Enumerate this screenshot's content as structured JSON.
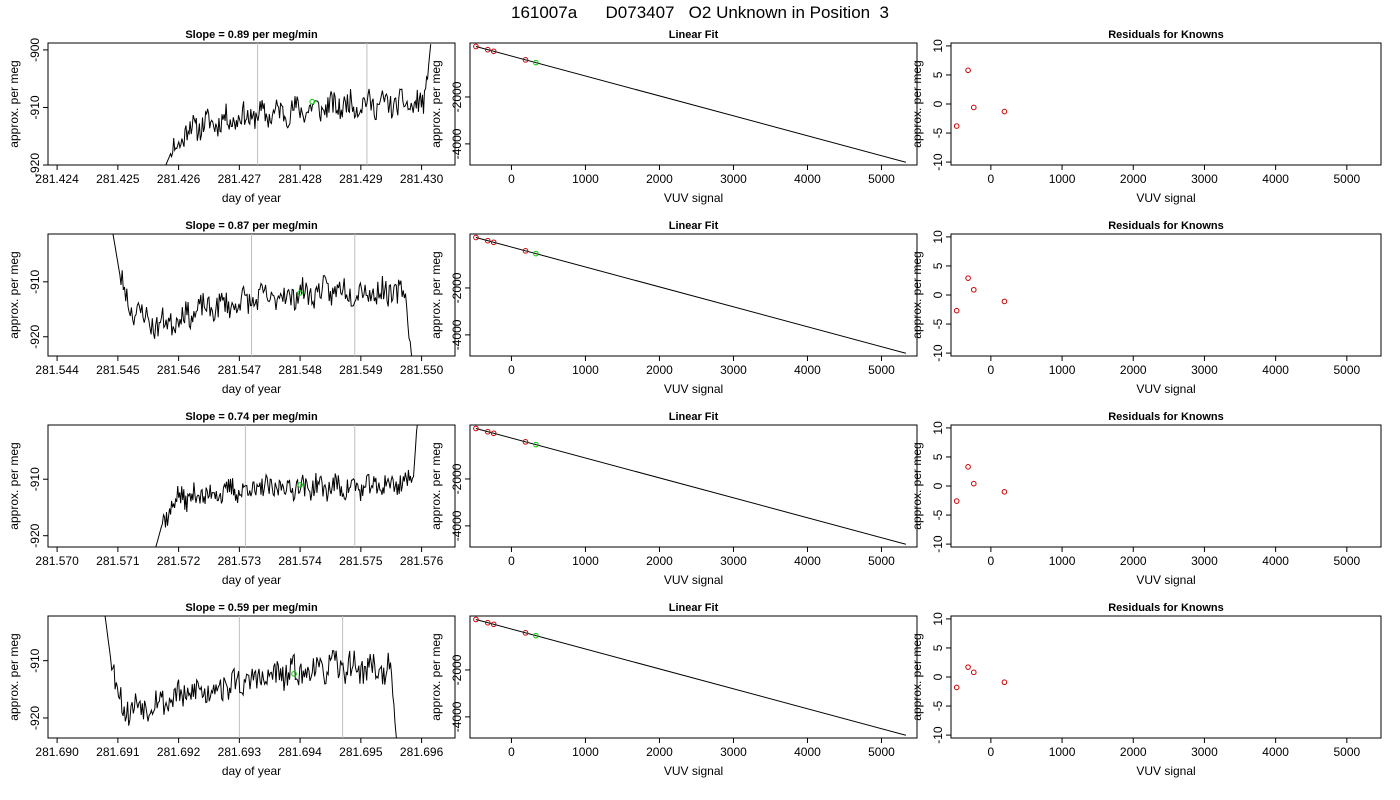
{
  "page_title": "161007a      D073407   O2 Unknown in Position  3",
  "panel_titles": {
    "linear_fit": "Linear Fit",
    "residuals": "Residuals for Knowns"
  },
  "axis_labels": {
    "day_of_year": "day of year",
    "vuv_signal": "VUV signal",
    "per_meg": "approx. per meg"
  },
  "colors": {
    "trace": "#000000",
    "known_points": "#cc0000",
    "unknown_point": "#00cc00",
    "marker_lines": "#bfbfbf"
  },
  "chart_data": [
    {
      "type": "line",
      "panel": "timeseries-row-1",
      "title": "Slope =  0.89  per meg/min",
      "xlabel": "day of year",
      "ylabel": "approx. per meg",
      "xlim": [
        281.42385,
        281.43055
      ],
      "ylim": [
        -920,
        -898.8
      ],
      "xticks": [
        281.424,
        281.425,
        281.426,
        281.427,
        281.428,
        281.429,
        281.43
      ],
      "xtick_labels": [
        "281.424",
        "281.425",
        "281.426",
        "281.427",
        "281.428",
        "281.429",
        "281.430"
      ],
      "yticks": [
        -900,
        -910,
        -920
      ],
      "ytick_labels": [
        "-900",
        "-910",
        "-920"
      ],
      "vlines": [
        281.4273,
        281.4291
      ],
      "unknown_point": {
        "x": 281.4282,
        "y": -909.0
      },
      "trace_profile": {
        "x_start": 281.42575,
        "x_end": 281.43015,
        "start_y": -921.0,
        "mean": -910.8,
        "noise": 1.3,
        "end_y": -899,
        "knots": [
          [
            0.0,
            -919.5
          ],
          [
            0.1,
            -913.5
          ],
          [
            0.25,
            -912.0
          ],
          [
            0.5,
            -910.5
          ],
          [
            0.75,
            -909.3
          ],
          [
            0.95,
            -909.5
          ]
        ],
        "seed": 11
      }
    },
    {
      "type": "line",
      "panel": "linearfit-row-1",
      "title": "Linear Fit",
      "xlabel": "VUV signal",
      "ylabel": "approx. per meg",
      "xlim": [
        -560,
        5480
      ],
      "ylim": [
        -4900,
        300
      ],
      "xticks": [
        0,
        1000,
        2000,
        3000,
        4000,
        5000
      ],
      "xtick_labels": [
        "0",
        "1000",
        "2000",
        "3000",
        "4000",
        "5000"
      ],
      "yticks": [
        -2000,
        -4000
      ],
      "ytick_labels": [
        "-2000",
        "-4000"
      ],
      "fit_line": {
        "x": [
          -480,
          5330
        ],
        "y": [
          152,
          -4784
        ]
      },
      "known_points": {
        "x": [
          -480,
          -320,
          -240,
          190
        ],
        "y": [
          152,
          14,
          -53,
          -418
        ]
      },
      "unknown_point": {
        "x": 330,
        "y": -537
      }
    },
    {
      "type": "scatter",
      "panel": "residuals-row-1",
      "title": "Residuals for Knowns",
      "xlabel": "VUV signal",
      "ylabel": "approx. per meg",
      "xlim": [
        -560,
        5480
      ],
      "ylim": [
        -10.5,
        10.5
      ],
      "xticks": [
        0,
        1000,
        2000,
        3000,
        4000,
        5000
      ],
      "xtick_labels": [
        "0",
        "1000",
        "2000",
        "3000",
        "4000",
        "5000"
      ],
      "yticks": [
        10,
        5,
        0,
        -5,
        -10
      ],
      "ytick_labels": [
        "10",
        "5",
        "0",
        "-5",
        "-10"
      ],
      "points": {
        "x": [
          -480,
          -320,
          -240,
          190
        ],
        "y": [
          -3.8,
          5.8,
          -0.6,
          -1.3
        ]
      }
    },
    {
      "type": "line",
      "panel": "timeseries-row-2",
      "title": "Slope =  0.87  per meg/min",
      "xlabel": "day of year",
      "ylabel": "approx. per meg",
      "xlim": [
        281.54385,
        281.55055
      ],
      "ylim": [
        -923.5,
        -901.3
      ],
      "xticks": [
        281.544,
        281.545,
        281.546,
        281.547,
        281.548,
        281.549,
        281.55
      ],
      "xtick_labels": [
        "281.544",
        "281.545",
        "281.546",
        "281.547",
        "281.548",
        "281.549",
        "281.550"
      ],
      "yticks": [
        -910,
        -920
      ],
      "ytick_labels": [
        "-910",
        "-920"
      ],
      "vlines": [
        281.5472,
        281.5489
      ],
      "unknown_point": {
        "x": 281.548,
        "y": -912.0
      },
      "trace_profile": {
        "x_start": 281.5449,
        "x_end": 281.54985,
        "start_y": -900,
        "mean": -913.5,
        "noise": 1.4,
        "end_y": -925,
        "knots": [
          [
            0.0,
            -905
          ],
          [
            0.06,
            -914.5
          ],
          [
            0.15,
            -918.0
          ],
          [
            0.3,
            -915.0
          ],
          [
            0.5,
            -913.0
          ],
          [
            0.75,
            -911.5
          ],
          [
            0.92,
            -912.0
          ]
        ],
        "seed": 23
      }
    },
    {
      "type": "line",
      "panel": "linearfit-row-2",
      "title": "Linear Fit",
      "xlabel": "VUV signal",
      "ylabel": "approx. per meg",
      "xlim": [
        -560,
        5480
      ],
      "ylim": [
        -4900,
        300
      ],
      "xticks": [
        0,
        1000,
        2000,
        3000,
        4000,
        5000
      ],
      "xtick_labels": [
        "0",
        "1000",
        "2000",
        "3000",
        "4000",
        "5000"
      ],
      "yticks": [
        -2000,
        -4000
      ],
      "ytick_labels": [
        "-2000",
        "-4000"
      ],
      "fit_line": {
        "x": [
          -480,
          5330
        ],
        "y": [
          152,
          -4784
        ]
      },
      "known_points": {
        "x": [
          -480,
          -320,
          -240,
          190
        ],
        "y": [
          152,
          14,
          -53,
          -418
        ]
      },
      "unknown_point": {
        "x": 330,
        "y": -537
      }
    },
    {
      "type": "scatter",
      "panel": "residuals-row-2",
      "title": "Residuals for Knowns",
      "xlabel": "VUV signal",
      "ylabel": "approx. per meg",
      "xlim": [
        -560,
        5480
      ],
      "ylim": [
        -10.5,
        10.5
      ],
      "xticks": [
        0,
        1000,
        2000,
        3000,
        4000,
        5000
      ],
      "xtick_labels": [
        "0",
        "1000",
        "2000",
        "3000",
        "4000",
        "5000"
      ],
      "yticks": [
        10,
        5,
        0,
        -5,
        -10
      ],
      "ytick_labels": [
        "10",
        "5",
        "0",
        "-5",
        "-10"
      ],
      "points": {
        "x": [
          -480,
          -320,
          -240,
          190
        ],
        "y": [
          -2.7,
          2.9,
          0.9,
          -1.1
        ]
      }
    },
    {
      "type": "line",
      "panel": "timeseries-row-3",
      "title": "Slope =  0.74  per meg/min",
      "xlabel": "day of year",
      "ylabel": "approx. per meg",
      "xlim": [
        281.56985,
        281.57655
      ],
      "ylim": [
        -922,
        -900.4
      ],
      "xticks": [
        281.57,
        281.571,
        281.572,
        281.573,
        281.574,
        281.575,
        281.576
      ],
      "xtick_labels": [
        "281.570",
        "281.571",
        "281.572",
        "281.573",
        "281.574",
        "281.575",
        "281.576"
      ],
      "yticks": [
        -910,
        -920
      ],
      "ytick_labels": [
        "-910",
        "-920"
      ],
      "vlines": [
        281.5731,
        281.5749
      ],
      "unknown_point": {
        "x": 281.574,
        "y": -911.0
      },
      "trace_profile": {
        "x_start": 281.5716,
        "x_end": 281.57595,
        "start_y": -923,
        "mean": -911.5,
        "noise": 1.2,
        "end_y": -898,
        "knots": [
          [
            0.0,
            -920.5
          ],
          [
            0.08,
            -913.5
          ],
          [
            0.3,
            -912.0
          ],
          [
            0.55,
            -911.3
          ],
          [
            0.8,
            -911.5
          ],
          [
            0.95,
            -910.5
          ]
        ],
        "seed": 37
      }
    },
    {
      "type": "line",
      "panel": "linearfit-row-3",
      "title": "Linear Fit",
      "xlabel": "VUV signal",
      "ylabel": "approx. per meg",
      "xlim": [
        -560,
        5480
      ],
      "ylim": [
        -4900,
        300
      ],
      "xticks": [
        0,
        1000,
        2000,
        3000,
        4000,
        5000
      ],
      "xtick_labels": [
        "0",
        "1000",
        "2000",
        "3000",
        "4000",
        "5000"
      ],
      "yticks": [
        -2000,
        -4000
      ],
      "ytick_labels": [
        "-2000",
        "-4000"
      ],
      "fit_line": {
        "x": [
          -480,
          5330
        ],
        "y": [
          152,
          -4784
        ]
      },
      "known_points": {
        "x": [
          -480,
          -320,
          -240,
          190
        ],
        "y": [
          152,
          14,
          -53,
          -418
        ]
      },
      "unknown_point": {
        "x": 330,
        "y": -537
      }
    },
    {
      "type": "scatter",
      "panel": "residuals-row-3",
      "title": "Residuals for Knowns",
      "xlabel": "VUV signal",
      "ylabel": "approx. per meg",
      "xlim": [
        -560,
        5480
      ],
      "ylim": [
        -10.5,
        10.5
      ],
      "xticks": [
        0,
        1000,
        2000,
        3000,
        4000,
        5000
      ],
      "xtick_labels": [
        "0",
        "1000",
        "2000",
        "3000",
        "4000",
        "5000"
      ],
      "yticks": [
        10,
        5,
        0,
        -5,
        -10
      ],
      "ytick_labels": [
        "10",
        "5",
        "0",
        "-5",
        "-10"
      ],
      "points": {
        "x": [
          -480,
          -320,
          -240,
          190
        ],
        "y": [
          -2.6,
          3.3,
          0.4,
          -1.0
        ]
      }
    },
    {
      "type": "line",
      "panel": "timeseries-row-4",
      "title": "Slope =  0.59  per meg/min",
      "xlabel": "day of year",
      "ylabel": "approx. per meg",
      "xlim": [
        281.68985,
        281.69655
      ],
      "ylim": [
        -923.5,
        -902.2
      ],
      "xticks": [
        281.69,
        281.691,
        281.692,
        281.693,
        281.694,
        281.695,
        281.696
      ],
      "xtick_labels": [
        "281.690",
        "281.691",
        "281.692",
        "281.693",
        "281.694",
        "281.695",
        "281.696"
      ],
      "yticks": [
        -910,
        -920
      ],
      "ytick_labels": [
        "-910",
        "-920"
      ],
      "vlines": [
        281.693,
        281.6947
      ],
      "unknown_point": {
        "x": 281.6939,
        "y": -912.3
      },
      "trace_profile": {
        "x_start": 281.69075,
        "x_end": 281.6956,
        "start_y": -899,
        "mean": -913.5,
        "noise": 1.5,
        "end_y": -925,
        "knots": [
          [
            0.0,
            -905
          ],
          [
            0.07,
            -918.5
          ],
          [
            0.2,
            -917.0
          ],
          [
            0.4,
            -914.5
          ],
          [
            0.6,
            -912.5
          ],
          [
            0.8,
            -911.0
          ],
          [
            0.95,
            -911.5
          ]
        ],
        "seed": 53
      }
    },
    {
      "type": "line",
      "panel": "linearfit-row-4",
      "title": "Linear Fit",
      "xlabel": "VUV signal",
      "ylabel": "approx. per meg",
      "xlim": [
        -560,
        5480
      ],
      "ylim": [
        -4900,
        300
      ],
      "xticks": [
        0,
        1000,
        2000,
        3000,
        4000,
        5000
      ],
      "xtick_labels": [
        "0",
        "1000",
        "2000",
        "3000",
        "4000",
        "5000"
      ],
      "yticks": [
        -2000,
        -4000
      ],
      "ytick_labels": [
        "-2000",
        "-4000"
      ],
      "fit_line": {
        "x": [
          -480,
          5330
        ],
        "y": [
          152,
          -4784
        ]
      },
      "known_points": {
        "x": [
          -480,
          -320,
          -240,
          190
        ],
        "y": [
          152,
          14,
          -53,
          -418
        ]
      },
      "unknown_point": {
        "x": 330,
        "y": -537
      }
    },
    {
      "type": "scatter",
      "panel": "residuals-row-4",
      "title": "Residuals for Knowns",
      "xlabel": "VUV signal",
      "ylabel": "approx. per meg",
      "xlim": [
        -560,
        5480
      ],
      "ylim": [
        -10.5,
        10.5
      ],
      "xticks": [
        0,
        1000,
        2000,
        3000,
        4000,
        5000
      ],
      "xtick_labels": [
        "0",
        "1000",
        "2000",
        "3000",
        "4000",
        "5000"
      ],
      "yticks": [
        10,
        5,
        0,
        -5,
        -10
      ],
      "ytick_labels": [
        "10",
        "5",
        "0",
        "-5",
        "-10"
      ],
      "points": {
        "x": [
          -480,
          -320,
          -240,
          190
        ],
        "y": [
          -1.8,
          1.7,
          0.8,
          -0.9
        ]
      }
    }
  ]
}
